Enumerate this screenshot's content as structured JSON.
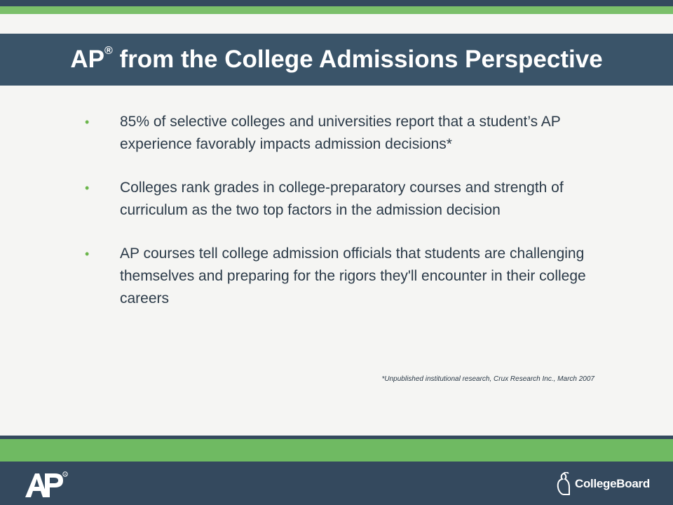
{
  "title": {
    "prefix": "AP",
    "registered": "®",
    "rest": " from the College Admissions Perspective"
  },
  "bullets": [
    {
      "text": "85% of selective colleges and universities report that a student’s AP experience favorably impacts admission decisions*"
    },
    {
      "text": "Colleges rank grades in college-preparatory courses and strength of curriculum as the two top factors in the admission decision"
    },
    {
      "text": "AP courses tell college admission officials that students are challenging themselves and preparing for the rigors they'll encounter in their college careers"
    }
  ],
  "bullet_marker": "•",
  "footnote": "*Unpublished institutional research,  Crux Research Inc., March 2007",
  "footer": {
    "ap_logo_text": "AP",
    "collegeboard_text": "CollegeBoard"
  },
  "colors": {
    "dark_slate": "#34495e",
    "green": "#7bbf6a",
    "title_bar": "#3a5469",
    "text": "#2b3a48"
  }
}
